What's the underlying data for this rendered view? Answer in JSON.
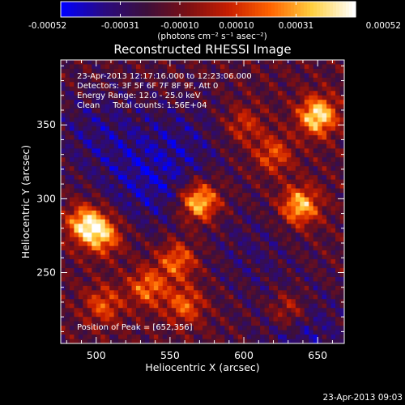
{
  "chart_data": {
    "type": "heatmap",
    "title": "Reconstructed RHESSI Image",
    "xlabel": "Heliocentric X (arcsec)",
    "ylabel": "Heliocentric Y (arcsec)",
    "xlim": [
      476,
      668
    ],
    "ylim": [
      202,
      394
    ],
    "x_ticks": [
      500,
      550,
      600,
      650
    ],
    "y_ticks": [
      250,
      300,
      350
    ],
    "colorbar": {
      "range": [
        -0.00052,
        0.00052
      ],
      "tick_values": [
        -0.00052,
        -0.00031,
        -0.0001,
        0.0001,
        0.00031,
        0.00052
      ],
      "tick_labels": [
        "-0.00052",
        "-0.00031",
        "-0.00010",
        "0.00010",
        "0.00031",
        "0.00052"
      ],
      "units_label": "(photons cm⁻² s⁻¹ asec⁻²)",
      "colors": [
        "#0000ff",
        "#2a0a80",
        "#3c0f3c",
        "#7a0f14",
        "#c81e00",
        "#ff6400",
        "#ffd040",
        "#ffffff"
      ]
    },
    "annotations": {
      "time_range": "23-Apr-2013 12:17:16.000 to 12:23:06.000",
      "detectors": "Detectors: 3F 5F 6F 7F 8F 9F, Att 0",
      "energy_range": "Energy Range: 12.0 - 25.0 keV",
      "clean_counts": "Clean     Total counts: 1.56E+04",
      "peak": "Position of Peak = [652,356]"
    },
    "bright_sources": [
      {
        "x": 650,
        "y": 356,
        "strength": 1.0
      },
      {
        "x": 638,
        "y": 295,
        "strength": 0.85
      },
      {
        "x": 570,
        "y": 298,
        "strength": 0.95
      },
      {
        "x": 493,
        "y": 283,
        "strength": 0.9
      },
      {
        "x": 505,
        "y": 275,
        "strength": 0.7
      },
      {
        "x": 555,
        "y": 258,
        "strength": 0.6
      },
      {
        "x": 535,
        "y": 240,
        "strength": 0.6
      },
      {
        "x": 560,
        "y": 228,
        "strength": 0.55
      },
      {
        "x": 505,
        "y": 228,
        "strength": 0.5
      },
      {
        "x": 600,
        "y": 350,
        "strength": 0.4
      },
      {
        "x": 620,
        "y": 330,
        "strength": 0.5
      },
      {
        "x": 630,
        "y": 225,
        "strength": 0.45
      }
    ],
    "dim_regions": [
      {
        "x": 535,
        "y": 310,
        "strength": 0.9
      },
      {
        "x": 500,
        "y": 345,
        "strength": 0.7
      },
      {
        "x": 560,
        "y": 340,
        "strength": 0.6
      },
      {
        "x": 640,
        "y": 210,
        "strength": 0.8
      },
      {
        "x": 605,
        "y": 265,
        "strength": 0.5
      }
    ]
  },
  "footer": {
    "timestamp": "23-Apr-2013 09:03"
  }
}
